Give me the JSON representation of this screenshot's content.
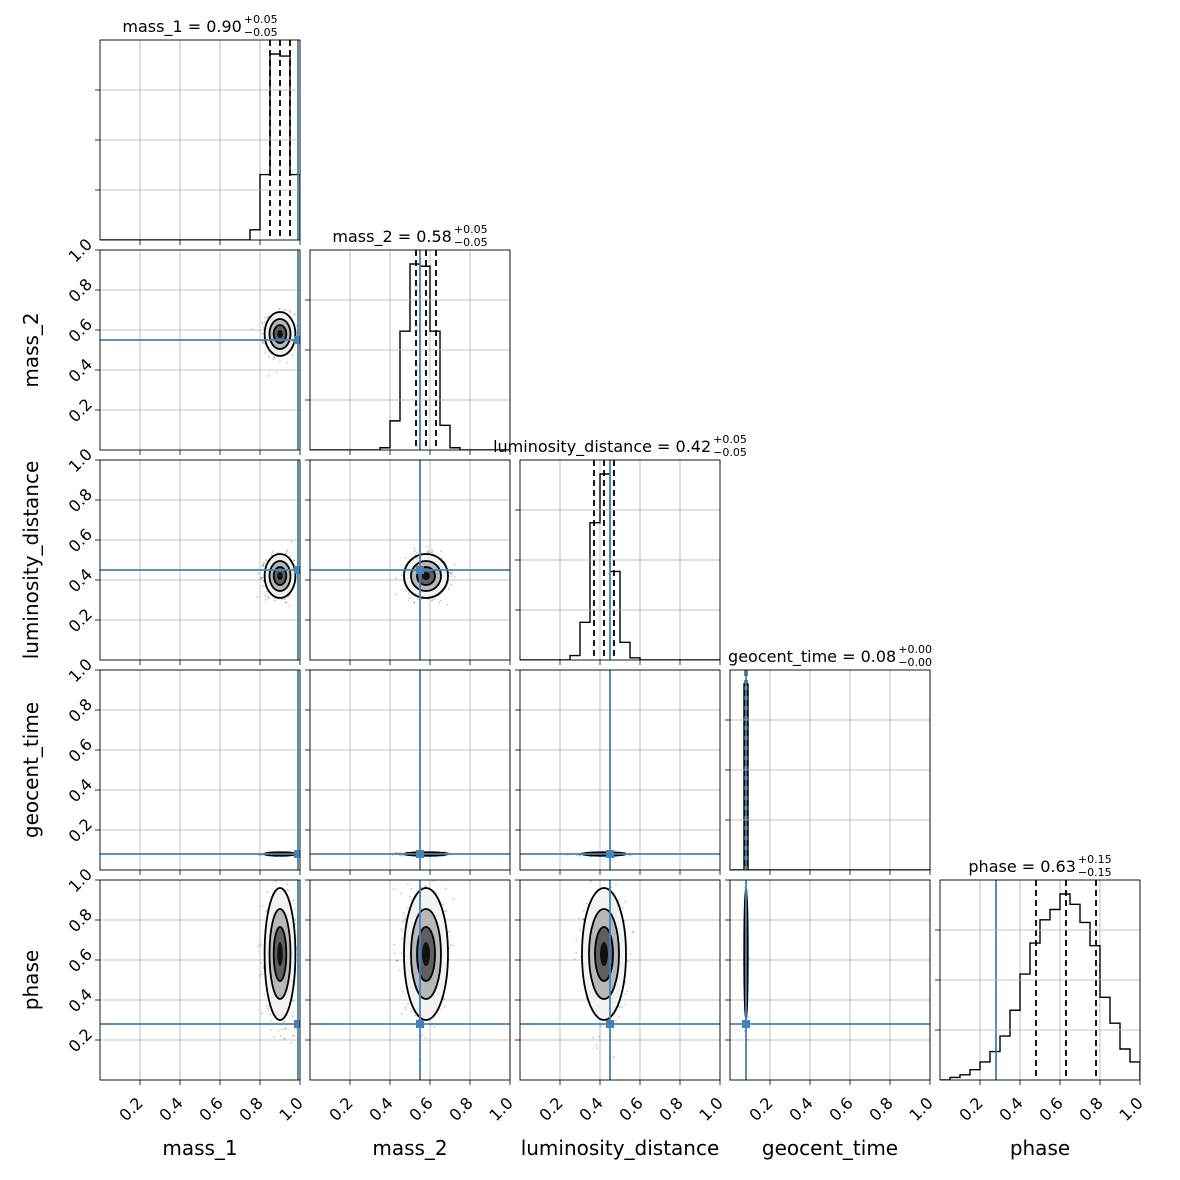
{
  "chart_data": {
    "type": "corner",
    "parameters": [
      "mass_1",
      "mass_2",
      "luminosity_distance",
      "geocent_time",
      "phase"
    ],
    "axis_range": [
      0.0,
      1.0
    ],
    "tick_values": [
      0.2,
      0.4,
      0.6,
      0.8,
      1.0
    ],
    "tick_labels": [
      "0.2",
      "0.4",
      "0.6",
      "0.8",
      "1.0"
    ],
    "grid": true,
    "colors": {
      "truth": "#4682b4",
      "hist": "#000000",
      "density": "#000000"
    },
    "truths": {
      "mass_1": 0.99,
      "mass_2": 0.55,
      "luminosity_distance": 0.45,
      "geocent_time": 0.08,
      "phase": 0.28
    },
    "titles": [
      {
        "param": "mass_1",
        "prefix": "mass_1 = 0.90",
        "sup": "+0.05",
        "sub": "−0.05"
      },
      {
        "param": "mass_2",
        "prefix": "mass_2 = 0.58",
        "sup": "+0.05",
        "sub": "−0.05"
      },
      {
        "param": "luminosity_distance",
        "prefix": "luminosity_distance = 0.42",
        "sup": "+0.05",
        "sub": "−0.05"
      },
      {
        "param": "geocent_time",
        "prefix": "geocent_time = 0.08",
        "sup": "+0.00",
        "sub": "−0.00"
      },
      {
        "param": "phase",
        "prefix": "phase = 0.63",
        "sup": "+0.15",
        "sub": "−0.15"
      }
    ],
    "posterior": {
      "mass_1": {
        "median": 0.9,
        "sigma": 0.035
      },
      "mass_2": {
        "median": 0.58,
        "sigma": 0.05
      },
      "luminosity_distance": {
        "median": 0.42,
        "sigma": 0.05
      },
      "geocent_time": {
        "median": 0.08,
        "sigma": 0.004
      },
      "phase": {
        "median": 0.63,
        "sigma": 0.15
      }
    },
    "quantiles": {
      "mass_1": [
        0.85,
        0.9,
        0.95
      ],
      "mass_2": [
        0.53,
        0.58,
        0.63
      ],
      "luminosity_distance": [
        0.37,
        0.42,
        0.47
      ],
      "geocent_time": [
        0.077,
        0.08,
        0.083
      ],
      "phase": [
        0.48,
        0.63,
        0.78
      ]
    },
    "histograms": {
      "mass_1": {
        "edges": [
          0.75,
          0.8,
          0.85,
          0.9,
          0.95,
          1.0
        ],
        "counts": [
          0.05,
          0.32,
          0.91,
          0.9,
          0.32
        ]
      },
      "mass_2": {
        "edges": [
          0.35,
          0.4,
          0.45,
          0.5,
          0.55,
          0.6,
          0.65,
          0.7,
          0.75
        ],
        "counts": [
          0.01,
          0.13,
          0.53,
          0.83,
          0.82,
          0.53,
          0.11,
          0.01
        ]
      },
      "luminosity_distance": {
        "edges": [
          0.25,
          0.3,
          0.35,
          0.4,
          0.45,
          0.5,
          0.55,
          0.6
        ],
        "counts": [
          0.02,
          0.17,
          0.62,
          0.84,
          0.4,
          0.08,
          0.01
        ]
      },
      "geocent_time": {
        "edges": [
          0.05,
          0.07,
          0.09,
          0.11
        ],
        "counts": [
          0.0,
          0.91,
          0.0
        ]
      },
      "phase": {
        "edges": [
          0.05,
          0.1,
          0.15,
          0.2,
          0.25,
          0.3,
          0.35,
          0.4,
          0.45,
          0.5,
          0.55,
          0.6,
          0.65,
          0.7,
          0.75,
          0.8,
          0.85,
          0.9,
          0.95,
          1.0
        ],
        "counts": [
          0.01,
          0.02,
          0.04,
          0.07,
          0.11,
          0.17,
          0.27,
          0.41,
          0.53,
          0.62,
          0.66,
          0.72,
          0.68,
          0.61,
          0.52,
          0.32,
          0.22,
          0.12,
          0.07
        ]
      }
    }
  }
}
